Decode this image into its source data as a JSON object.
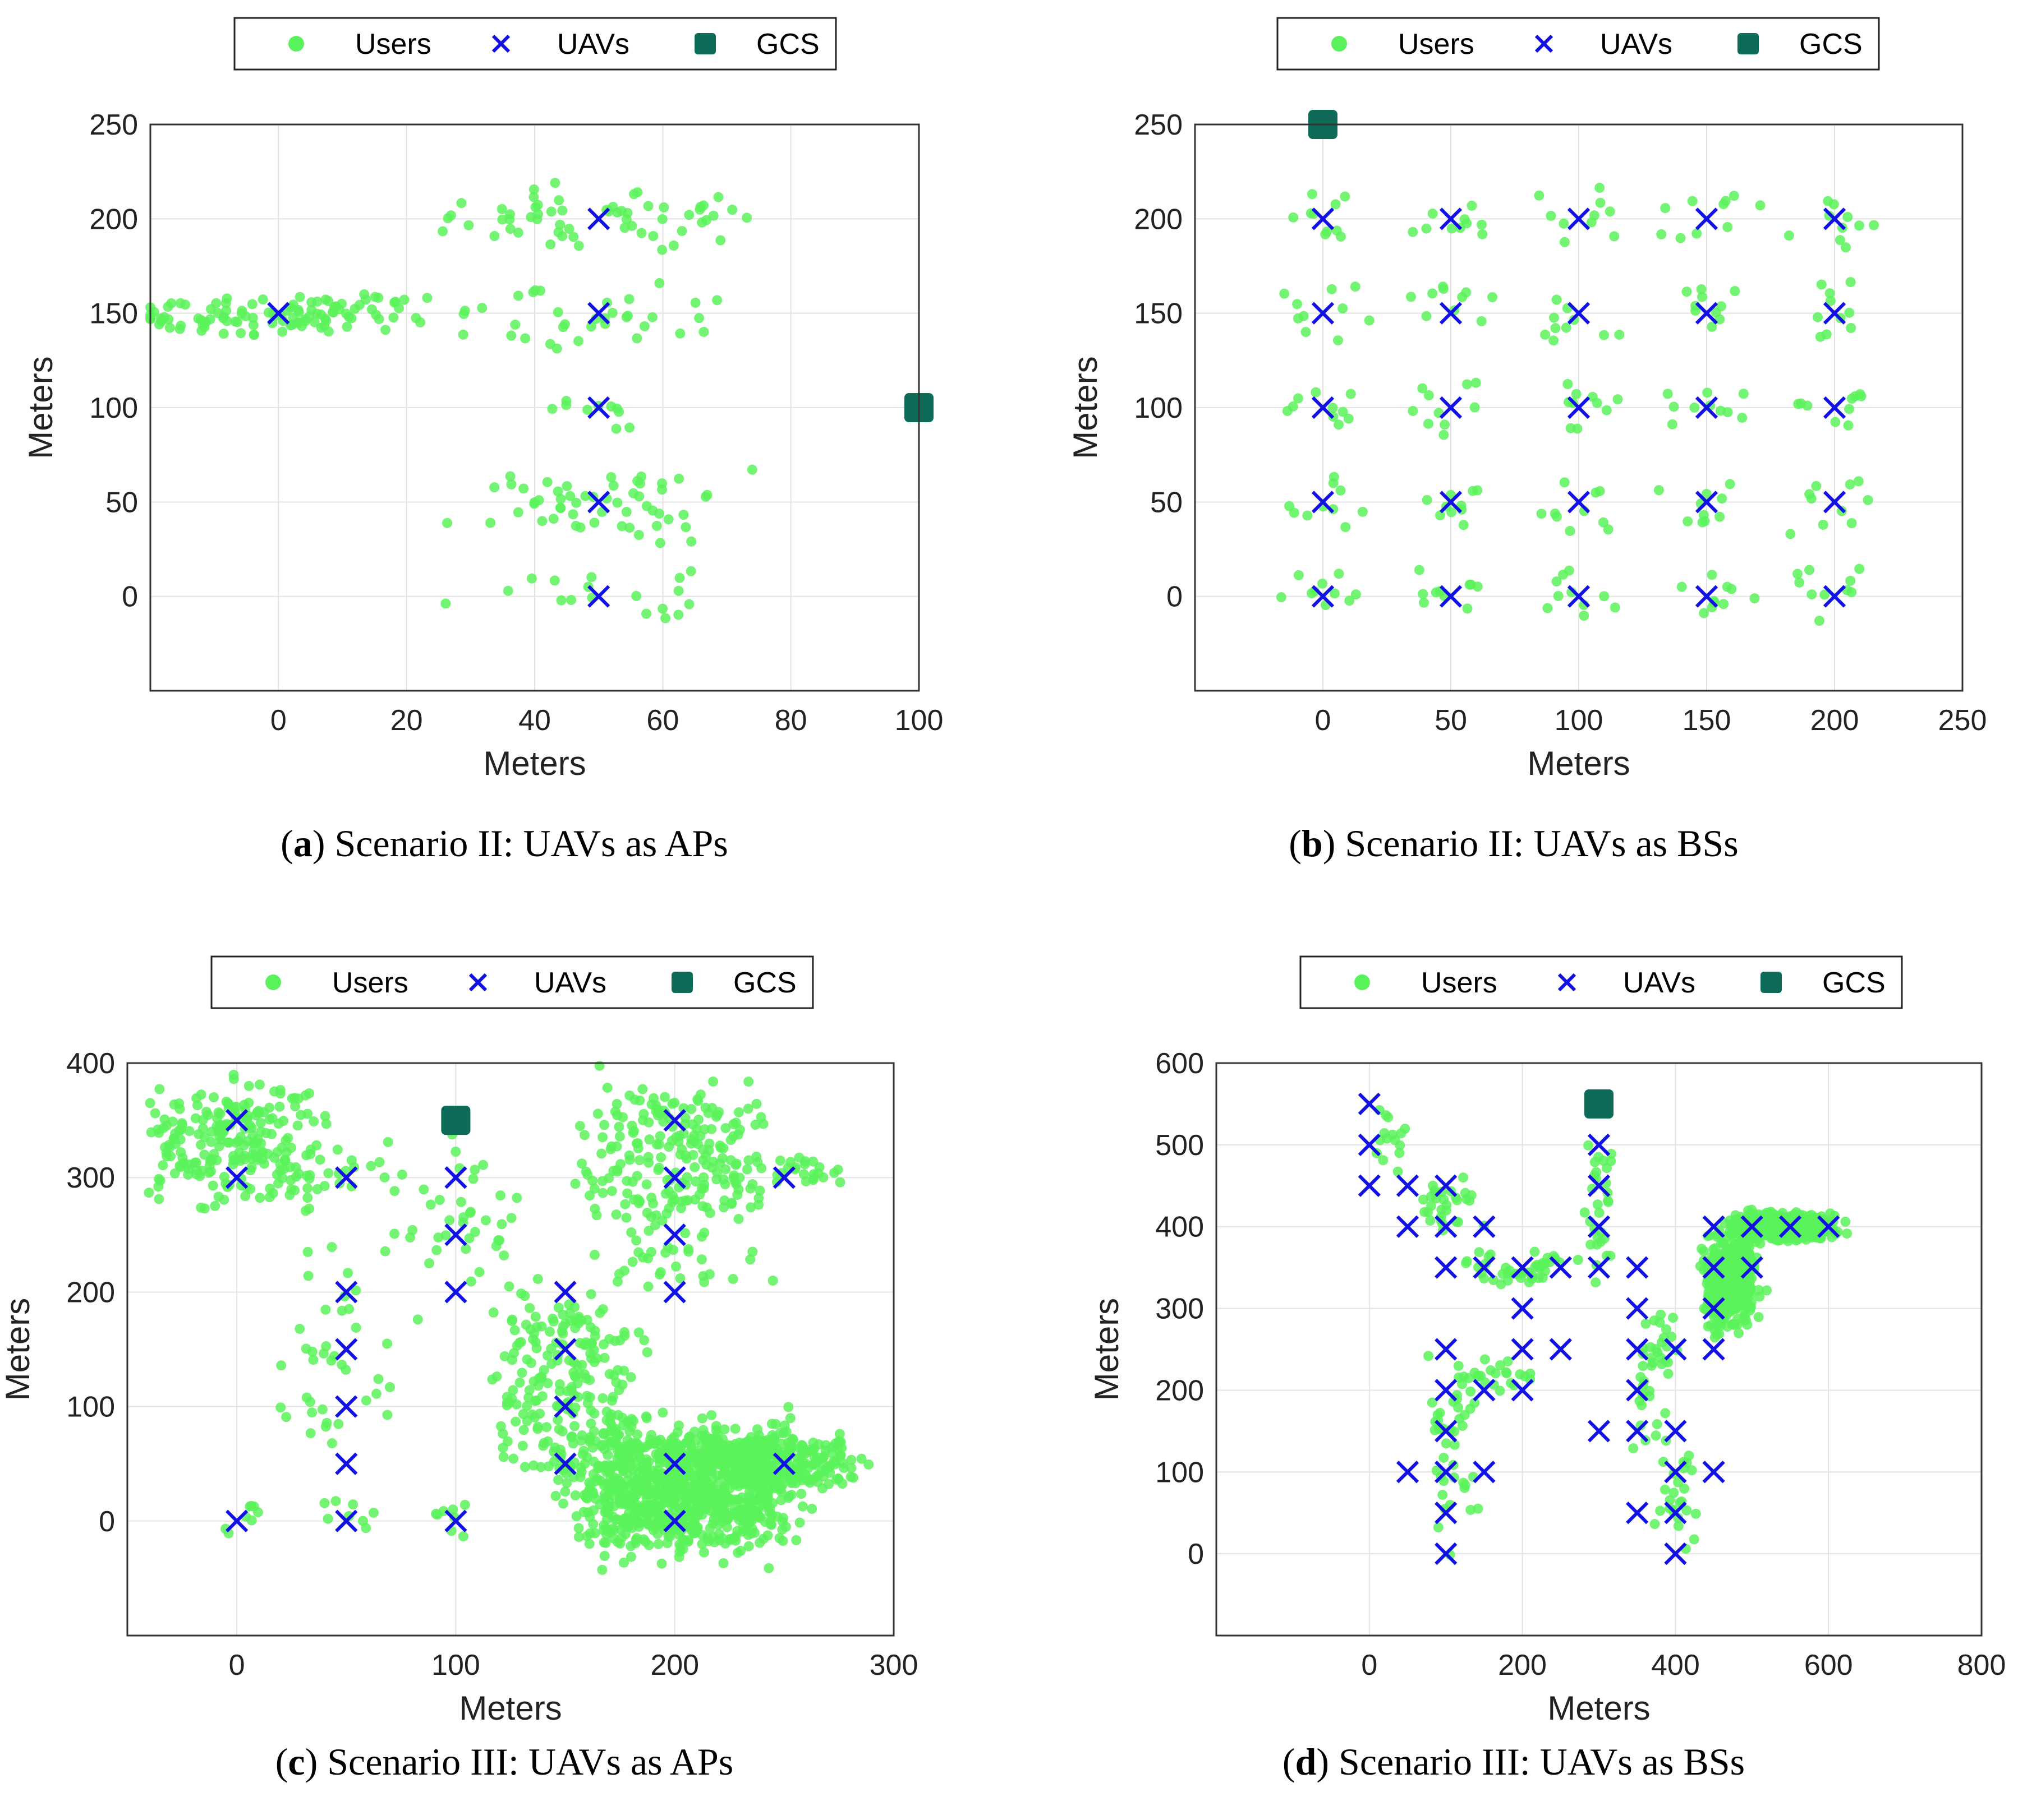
{
  "colors": {
    "users": "#5af25a",
    "uavs": "#1111e6",
    "gcs": "#0e6b5a",
    "grid": "#e3e3e3",
    "axis": "#333333"
  },
  "legend_labels": {
    "users": "Users",
    "uavs": "UAVs",
    "gcs": "GCS"
  },
  "chart_data": [
    {
      "type": "scatter",
      "caption_letter": "a",
      "caption_text": ") Scenario II: UAVs as APs",
      "title": "",
      "xlabel": "Meters",
      "ylabel": "Meters",
      "xlim": [
        -20,
        100
      ],
      "ylim": [
        -50,
        250
      ],
      "xticks": [
        0,
        20,
        40,
        60,
        80,
        100
      ],
      "yticks": [
        0,
        50,
        100,
        150,
        200,
        250
      ],
      "uavs": [
        [
          0,
          150
        ],
        [
          50,
          200
        ],
        [
          50,
          150
        ],
        [
          50,
          100
        ],
        [
          50,
          50
        ],
        [
          50,
          0
        ]
      ],
      "gcs": [
        [
          100,
          100
        ]
      ],
      "user_clusters": [
        {
          "center": [
            0,
            150
          ],
          "count": 110,
          "sx": 19,
          "sy": 9
        },
        {
          "center": [
            50,
            200
          ],
          "count": 60,
          "sx": 20,
          "sy": 14
        },
        {
          "center": [
            50,
            150
          ],
          "count": 35,
          "sx": 20,
          "sy": 20
        },
        {
          "center": [
            50,
            100
          ],
          "count": 10,
          "sx": 6,
          "sy": 10
        },
        {
          "center": [
            50,
            50
          ],
          "count": 55,
          "sx": 19,
          "sy": 16
        },
        {
          "center": [
            50,
            0
          ],
          "count": 18,
          "sx": 19,
          "sy": 14
        }
      ]
    },
    {
      "type": "scatter",
      "caption_letter": "b",
      "caption_text": ") Scenario II: UAVs as BSs",
      "title": "",
      "xlabel": "Meters",
      "ylabel": "Meters",
      "xlim": [
        -50,
        250
      ],
      "ylim": [
        -50,
        250
      ],
      "xticks": [
        0,
        50,
        100,
        150,
        200,
        250
      ],
      "yticks": [
        0,
        50,
        100,
        150,
        200,
        250
      ],
      "uavs": [
        [
          0,
          200
        ],
        [
          50,
          200
        ],
        [
          100,
          200
        ],
        [
          150,
          200
        ],
        [
          200,
          200
        ],
        [
          0,
          150
        ],
        [
          50,
          150
        ],
        [
          100,
          150
        ],
        [
          150,
          150
        ],
        [
          200,
          150
        ],
        [
          0,
          100
        ],
        [
          50,
          100
        ],
        [
          100,
          100
        ],
        [
          150,
          100
        ],
        [
          200,
          100
        ],
        [
          0,
          50
        ],
        [
          50,
          50
        ],
        [
          100,
          50
        ],
        [
          150,
          50
        ],
        [
          200,
          50
        ],
        [
          0,
          0
        ],
        [
          50,
          0
        ],
        [
          100,
          0
        ],
        [
          150,
          0
        ],
        [
          200,
          0
        ]
      ],
      "gcs": [
        [
          0,
          250
        ]
      ],
      "user_clusters": [
        {
          "center": [
            0,
            200
          ],
          "count": 10,
          "sx": 15,
          "sy": 14
        },
        {
          "center": [
            50,
            200
          ],
          "count": 10,
          "sx": 15,
          "sy": 14
        },
        {
          "center": [
            100,
            200
          ],
          "count": 10,
          "sx": 15,
          "sy": 14
        },
        {
          "center": [
            150,
            200
          ],
          "count": 10,
          "sx": 15,
          "sy": 14
        },
        {
          "center": [
            200,
            200
          ],
          "count": 10,
          "sx": 15,
          "sy": 14
        },
        {
          "center": [
            0,
            150
          ],
          "count": 10,
          "sx": 15,
          "sy": 14
        },
        {
          "center": [
            50,
            150
          ],
          "count": 10,
          "sx": 15,
          "sy": 14
        },
        {
          "center": [
            100,
            150
          ],
          "count": 10,
          "sx": 15,
          "sy": 14
        },
        {
          "center": [
            150,
            150
          ],
          "count": 10,
          "sx": 15,
          "sy": 14
        },
        {
          "center": [
            200,
            150
          ],
          "count": 10,
          "sx": 15,
          "sy": 14
        },
        {
          "center": [
            0,
            100
          ],
          "count": 10,
          "sx": 15,
          "sy": 14
        },
        {
          "center": [
            50,
            100
          ],
          "count": 10,
          "sx": 15,
          "sy": 14
        },
        {
          "center": [
            100,
            100
          ],
          "count": 10,
          "sx": 15,
          "sy": 14
        },
        {
          "center": [
            150,
            100
          ],
          "count": 10,
          "sx": 15,
          "sy": 14
        },
        {
          "center": [
            200,
            100
          ],
          "count": 10,
          "sx": 15,
          "sy": 14
        },
        {
          "center": [
            0,
            50
          ],
          "count": 10,
          "sx": 15,
          "sy": 14
        },
        {
          "center": [
            50,
            50
          ],
          "count": 10,
          "sx": 15,
          "sy": 14
        },
        {
          "center": [
            100,
            50
          ],
          "count": 10,
          "sx": 15,
          "sy": 14
        },
        {
          "center": [
            150,
            50
          ],
          "count": 10,
          "sx": 15,
          "sy": 14
        },
        {
          "center": [
            200,
            50
          ],
          "count": 10,
          "sx": 15,
          "sy": 14
        },
        {
          "center": [
            0,
            0
          ],
          "count": 10,
          "sx": 15,
          "sy": 14
        },
        {
          "center": [
            50,
            0
          ],
          "count": 10,
          "sx": 15,
          "sy": 14
        },
        {
          "center": [
            100,
            0
          ],
          "count": 10,
          "sx": 15,
          "sy": 14
        },
        {
          "center": [
            150,
            0
          ],
          "count": 10,
          "sx": 15,
          "sy": 14
        },
        {
          "center": [
            200,
            0
          ],
          "count": 10,
          "sx": 15,
          "sy": 14
        }
      ]
    },
    {
      "type": "scatter",
      "caption_letter": "c",
      "caption_text": ") Scenario III: UAVs as APs",
      "title": "",
      "xlabel": "Meters",
      "ylabel": "Meters",
      "xlim": [
        -50,
        300
      ],
      "ylim": [
        -100,
        400
      ],
      "xticks": [
        0,
        100,
        200,
        300
      ],
      "yticks": [
        0,
        100,
        200,
        300,
        400
      ],
      "uavs": [
        [
          0,
          350
        ],
        [
          0,
          300
        ],
        [
          50,
          300
        ],
        [
          100,
          300
        ],
        [
          100,
          250
        ],
        [
          100,
          200
        ],
        [
          200,
          350
        ],
        [
          200,
          300
        ],
        [
          250,
          300
        ],
        [
          200,
          250
        ],
        [
          200,
          200
        ],
        [
          150,
          200
        ],
        [
          150,
          150
        ],
        [
          150,
          100
        ],
        [
          150,
          50
        ],
        [
          50,
          200
        ],
        [
          50,
          150
        ],
        [
          50,
          100
        ],
        [
          50,
          50
        ],
        [
          50,
          0
        ],
        [
          0,
          0
        ],
        [
          100,
          0
        ],
        [
          200,
          50
        ],
        [
          200,
          0
        ],
        [
          250,
          50
        ]
      ],
      "gcs": [
        [
          100,
          350
        ]
      ],
      "user_clusters": [
        {
          "center": [
            0,
            330
          ],
          "count": 230,
          "sx": 35,
          "sy": 45
        },
        {
          "center": [
            200,
            320
          ],
          "count": 220,
          "sx": 35,
          "sy": 55
        },
        {
          "center": [
            255,
            305
          ],
          "count": 25,
          "sx": 22,
          "sy": 12
        },
        {
          "center": [
            150,
            120
          ],
          "count": 220,
          "sx": 28,
          "sy": 75
        },
        {
          "center": [
            205,
            30
          ],
          "count": 900,
          "sx": 42,
          "sy": 50
        },
        {
          "center": [
            250,
            50
          ],
          "count": 200,
          "sx": 30,
          "sy": 22
        },
        {
          "center": [
            50,
            150
          ],
          "count": 40,
          "sx": 25,
          "sy": 80
        },
        {
          "center": [
            100,
            270
          ],
          "count": 40,
          "sx": 30,
          "sy": 50
        },
        {
          "center": [
            0,
            0
          ],
          "count": 8,
          "sx": 15,
          "sy": 15
        },
        {
          "center": [
            50,
            0
          ],
          "count": 8,
          "sx": 15,
          "sy": 15
        },
        {
          "center": [
            100,
            0
          ],
          "count": 8,
          "sx": 15,
          "sy": 15
        },
        {
          "center": [
            50,
            300
          ],
          "count": 12,
          "sx": 20,
          "sy": 15
        },
        {
          "center": [
            200,
            225
          ],
          "count": 25,
          "sx": 30,
          "sy": 30
        }
      ]
    },
    {
      "type": "scatter",
      "caption_letter": "d",
      "caption_text": ") Scenario III: UAVs as BSs",
      "title": "",
      "xlabel": "Meters",
      "ylabel": "Meters",
      "xlim": [
        -200,
        800
      ],
      "ylim": [
        -100,
        600
      ],
      "xticks": [
        0,
        200,
        400,
        600,
        800
      ],
      "yticks": [
        0,
        100,
        200,
        300,
        400,
        500,
        600
      ],
      "uavs": [
        [
          0,
          550
        ],
        [
          0,
          500
        ],
        [
          0,
          450
        ],
        [
          50,
          450
        ],
        [
          100,
          450
        ],
        [
          50,
          400
        ],
        [
          100,
          400
        ],
        [
          150,
          400
        ],
        [
          100,
          350
        ],
        [
          150,
          350
        ],
        [
          200,
          350
        ],
        [
          250,
          350
        ],
        [
          300,
          350
        ],
        [
          350,
          350
        ],
        [
          200,
          300
        ],
        [
          350,
          300
        ],
        [
          300,
          500
        ],
        [
          300,
          450
        ],
        [
          300,
          400
        ],
        [
          100,
          250
        ],
        [
          100,
          200
        ],
        [
          100,
          150
        ],
        [
          100,
          100
        ],
        [
          100,
          50
        ],
        [
          100,
          0
        ],
        [
          50,
          100
        ],
        [
          150,
          100
        ],
        [
          150,
          200
        ],
        [
          200,
          200
        ],
        [
          200,
          250
        ],
        [
          250,
          250
        ],
        [
          350,
          250
        ],
        [
          350,
          200
        ],
        [
          400,
          250
        ],
        [
          300,
          150
        ],
        [
          350,
          150
        ],
        [
          400,
          150
        ],
        [
          400,
          100
        ],
        [
          400,
          50
        ],
        [
          400,
          0
        ],
        [
          350,
          50
        ],
        [
          450,
          100
        ],
        [
          450,
          250
        ],
        [
          450,
          300
        ],
        [
          450,
          350
        ],
        [
          450,
          400
        ],
        [
          500,
          400
        ],
        [
          500,
          350
        ],
        [
          550,
          400
        ],
        [
          600,
          400
        ]
      ],
      "gcs": [
        [
          300,
          550
        ]
      ],
      "user_clusters": [
        {
          "center": [
            20,
            500
          ],
          "count": 15,
          "sx": 20,
          "sy": 40
        },
        {
          "center": [
            100,
            420
          ],
          "count": 30,
          "sx": 40,
          "sy": 30
        },
        {
          "center": [
            180,
            350
          ],
          "count": 40,
          "sx": 70,
          "sy": 20
        },
        {
          "center": [
            300,
            430
          ],
          "count": 30,
          "sx": 15,
          "sy": 70
        },
        {
          "center": [
            110,
            130
          ],
          "count": 45,
          "sx": 25,
          "sy": 90
        },
        {
          "center": [
            170,
            220
          ],
          "count": 20,
          "sx": 40,
          "sy": 20
        },
        {
          "center": [
            370,
            220
          ],
          "count": 40,
          "sx": 25,
          "sy": 80
        },
        {
          "center": [
            400,
            80
          ],
          "count": 25,
          "sx": 20,
          "sy": 50
        },
        {
          "center": [
            470,
            330
          ],
          "count": 350,
          "sx": 30,
          "sy": 50
        },
        {
          "center": [
            540,
            400
          ],
          "count": 420,
          "sx": 55,
          "sy": 15
        }
      ]
    }
  ]
}
